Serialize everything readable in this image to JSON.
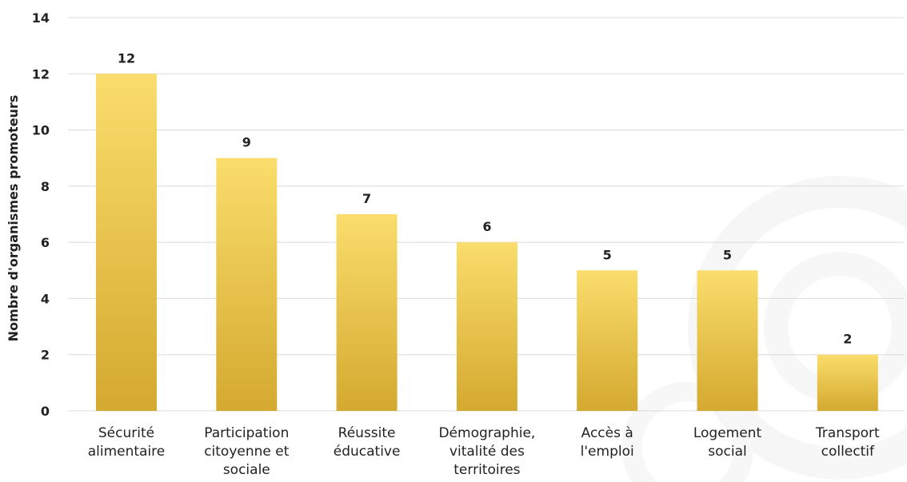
{
  "chart_data": {
    "type": "bar",
    "title": "",
    "xlabel": "",
    "ylabel": "Nombre d'organismes promoteurs",
    "ylim": [
      0,
      14
    ],
    "yticks": [
      0,
      2,
      4,
      6,
      8,
      10,
      12,
      14
    ],
    "grid": true,
    "legend": "none",
    "categories": [
      "Sécurité alimentaire",
      "Participation citoyenne et sociale",
      "Réussite éducative",
      "Démographie, vitalité des territoires",
      "Accès à l'emploi",
      "Logement social",
      "Transport collectif"
    ],
    "category_lines": [
      [
        "Sécurité",
        "alimentaire"
      ],
      [
        "Participation",
        "citoyenne et",
        "sociale"
      ],
      [
        "Réussite",
        "éducative"
      ],
      [
        "Démographie,",
        "vitalité des",
        "territoires"
      ],
      [
        "Accès à",
        "l'emploi"
      ],
      [
        "Logement",
        "social"
      ],
      [
        "Transport",
        "collectif"
      ]
    ],
    "values": [
      12,
      9,
      7,
      6,
      5,
      5,
      2
    ],
    "colors": {
      "bar_top": "#FADD6C",
      "bar_bottom": "#D4A92F",
      "grid": "#D9D9D9",
      "text": "#222222"
    }
  }
}
